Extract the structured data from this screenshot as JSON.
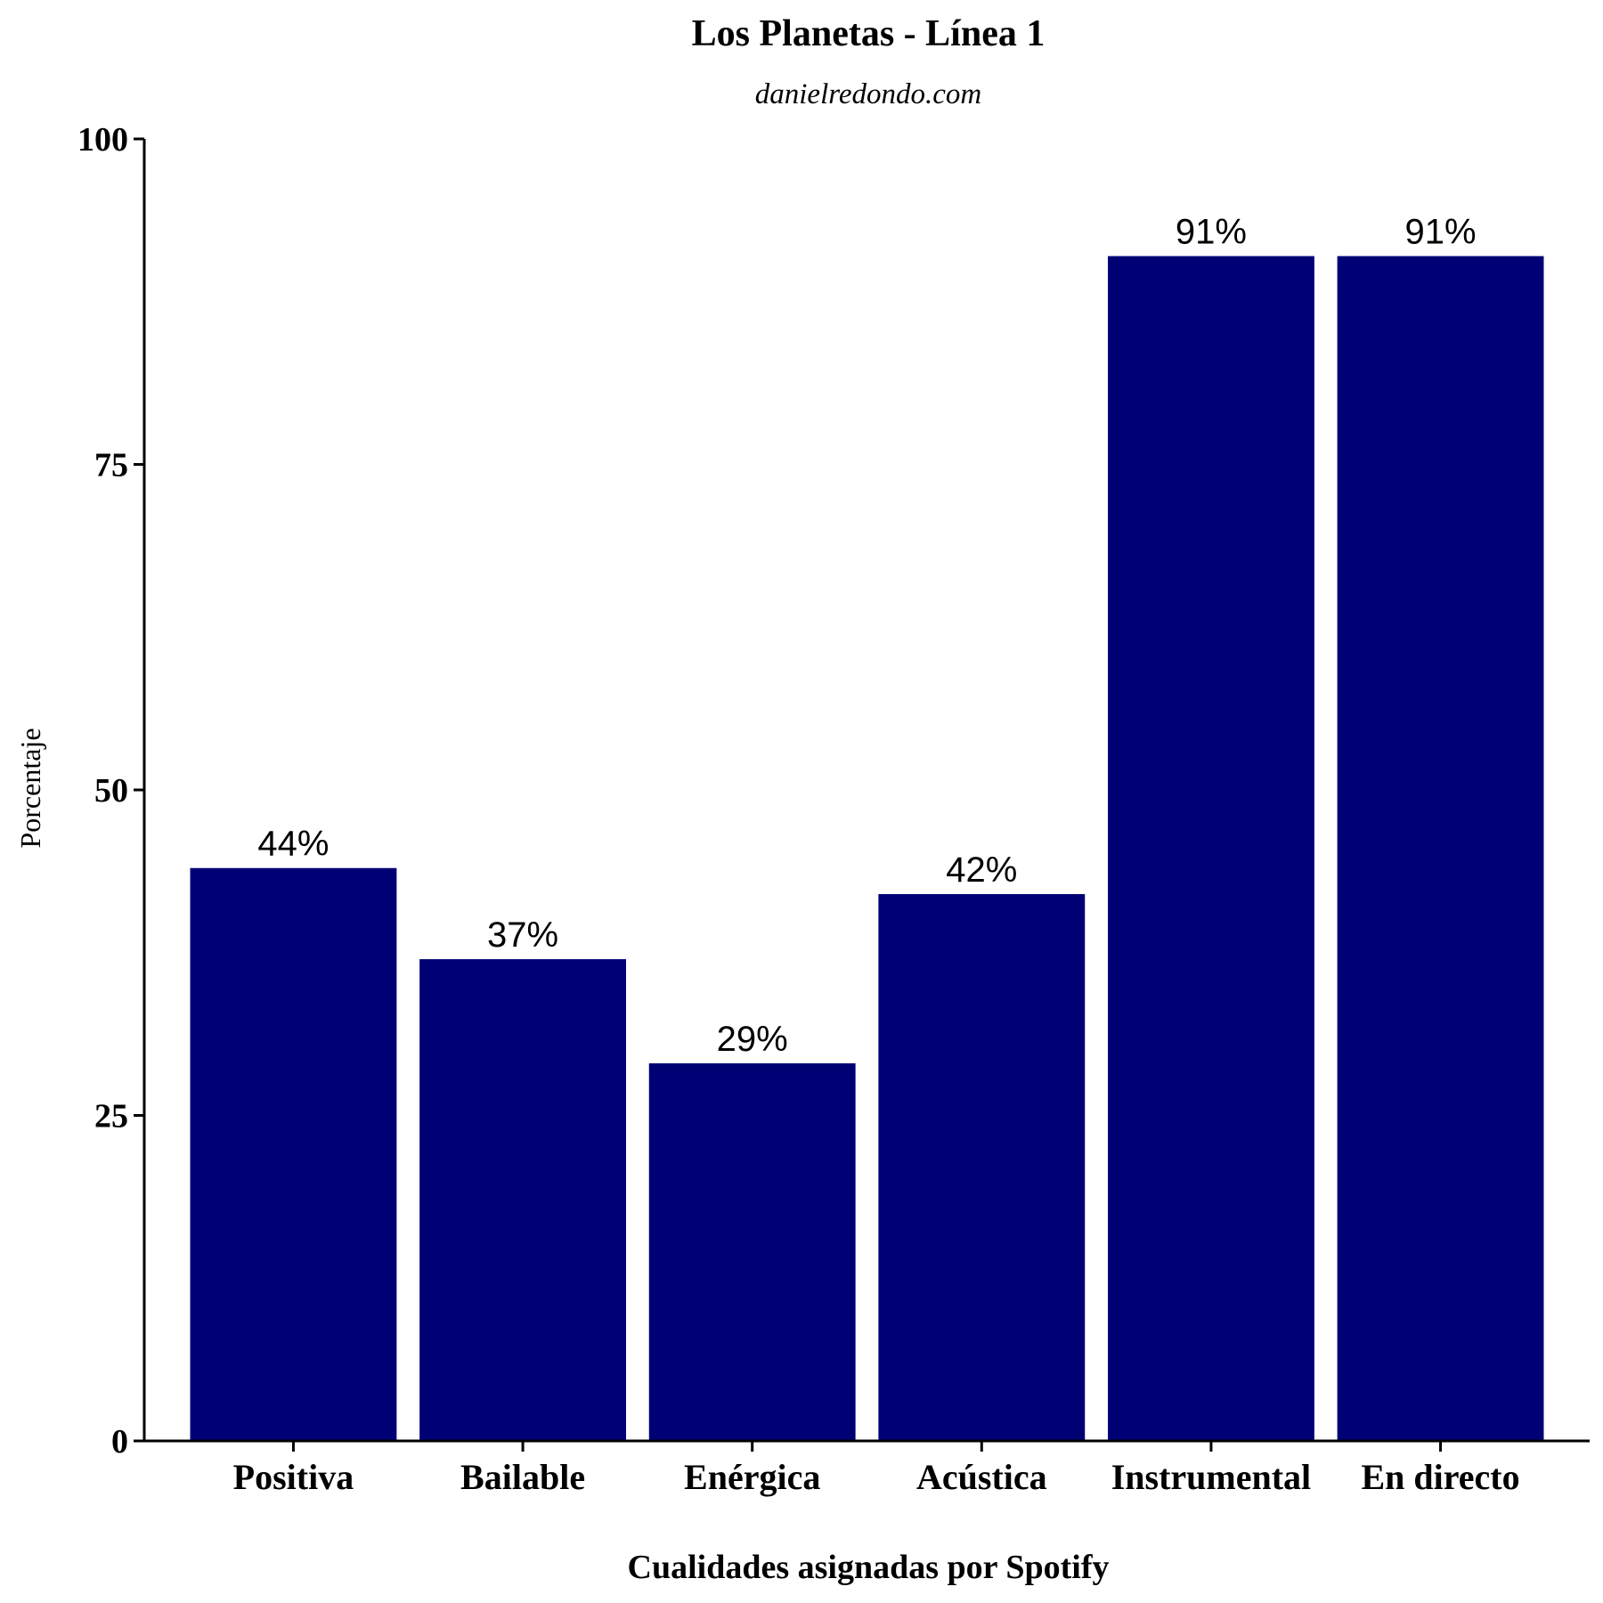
{
  "chart_data": {
    "type": "bar",
    "title": "Los Planetas - Línea 1",
    "subtitle": "danielredondo.com",
    "xlabel": "Cualidades asignadas por Spotify",
    "ylabel": "Porcentaje",
    "categories": [
      "Positiva",
      "Bailable",
      "Enérgica",
      "Acústica",
      "Instrumental",
      "En directo"
    ],
    "values": [
      44,
      37,
      29,
      42,
      91,
      91
    ],
    "data_labels": [
      "44%",
      "37%",
      "29%",
      "42%",
      "91%",
      "91%"
    ],
    "ylim": [
      0,
      100
    ],
    "yticks": [
      0,
      25,
      50,
      75,
      100
    ],
    "ytick_labels": [
      "0",
      "25",
      "50",
      "75",
      "100"
    ],
    "bar_color": "#000075",
    "grid": false,
    "legend": "none"
  }
}
